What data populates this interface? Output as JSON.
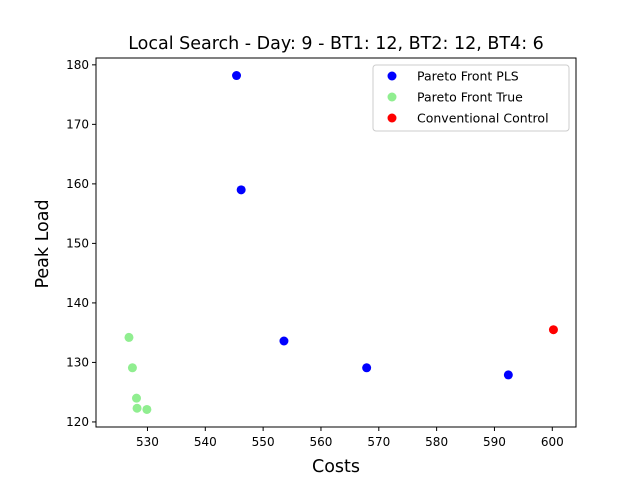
{
  "chart_data": {
    "type": "scatter",
    "title": "Local Search - Day: 9 - BT1: 12, BT2: 12, BT4: 6",
    "xlabel": "Costs",
    "ylabel": "Peak Load",
    "xlim": [
      521.1,
      604.1
    ],
    "ylim": [
      119.15,
      181.15
    ],
    "xticks": [
      530,
      540,
      550,
      560,
      570,
      580,
      590,
      600
    ],
    "yticks": [
      120,
      130,
      140,
      150,
      160,
      170,
      180
    ],
    "grid": false,
    "legend_position": "top-right",
    "series": [
      {
        "name": "Pareto Front PLS",
        "color": "#0000ff",
        "points": [
          {
            "x": 545.4,
            "y": 178.2
          },
          {
            "x": 546.2,
            "y": 159.0
          },
          {
            "x": 553.6,
            "y": 133.6
          },
          {
            "x": 567.9,
            "y": 129.1
          },
          {
            "x": 592.4,
            "y": 127.9
          }
        ]
      },
      {
        "name": "Pareto Front True",
        "color": "#90ee90",
        "points": [
          {
            "x": 526.8,
            "y": 134.2
          },
          {
            "x": 527.4,
            "y": 129.1
          },
          {
            "x": 528.1,
            "y": 124.0
          },
          {
            "x": 528.2,
            "y": 122.3
          },
          {
            "x": 529.9,
            "y": 122.1
          }
        ]
      },
      {
        "name": "Conventional Control",
        "color": "#ff0000",
        "points": [
          {
            "x": 600.2,
            "y": 135.5
          }
        ]
      }
    ]
  }
}
